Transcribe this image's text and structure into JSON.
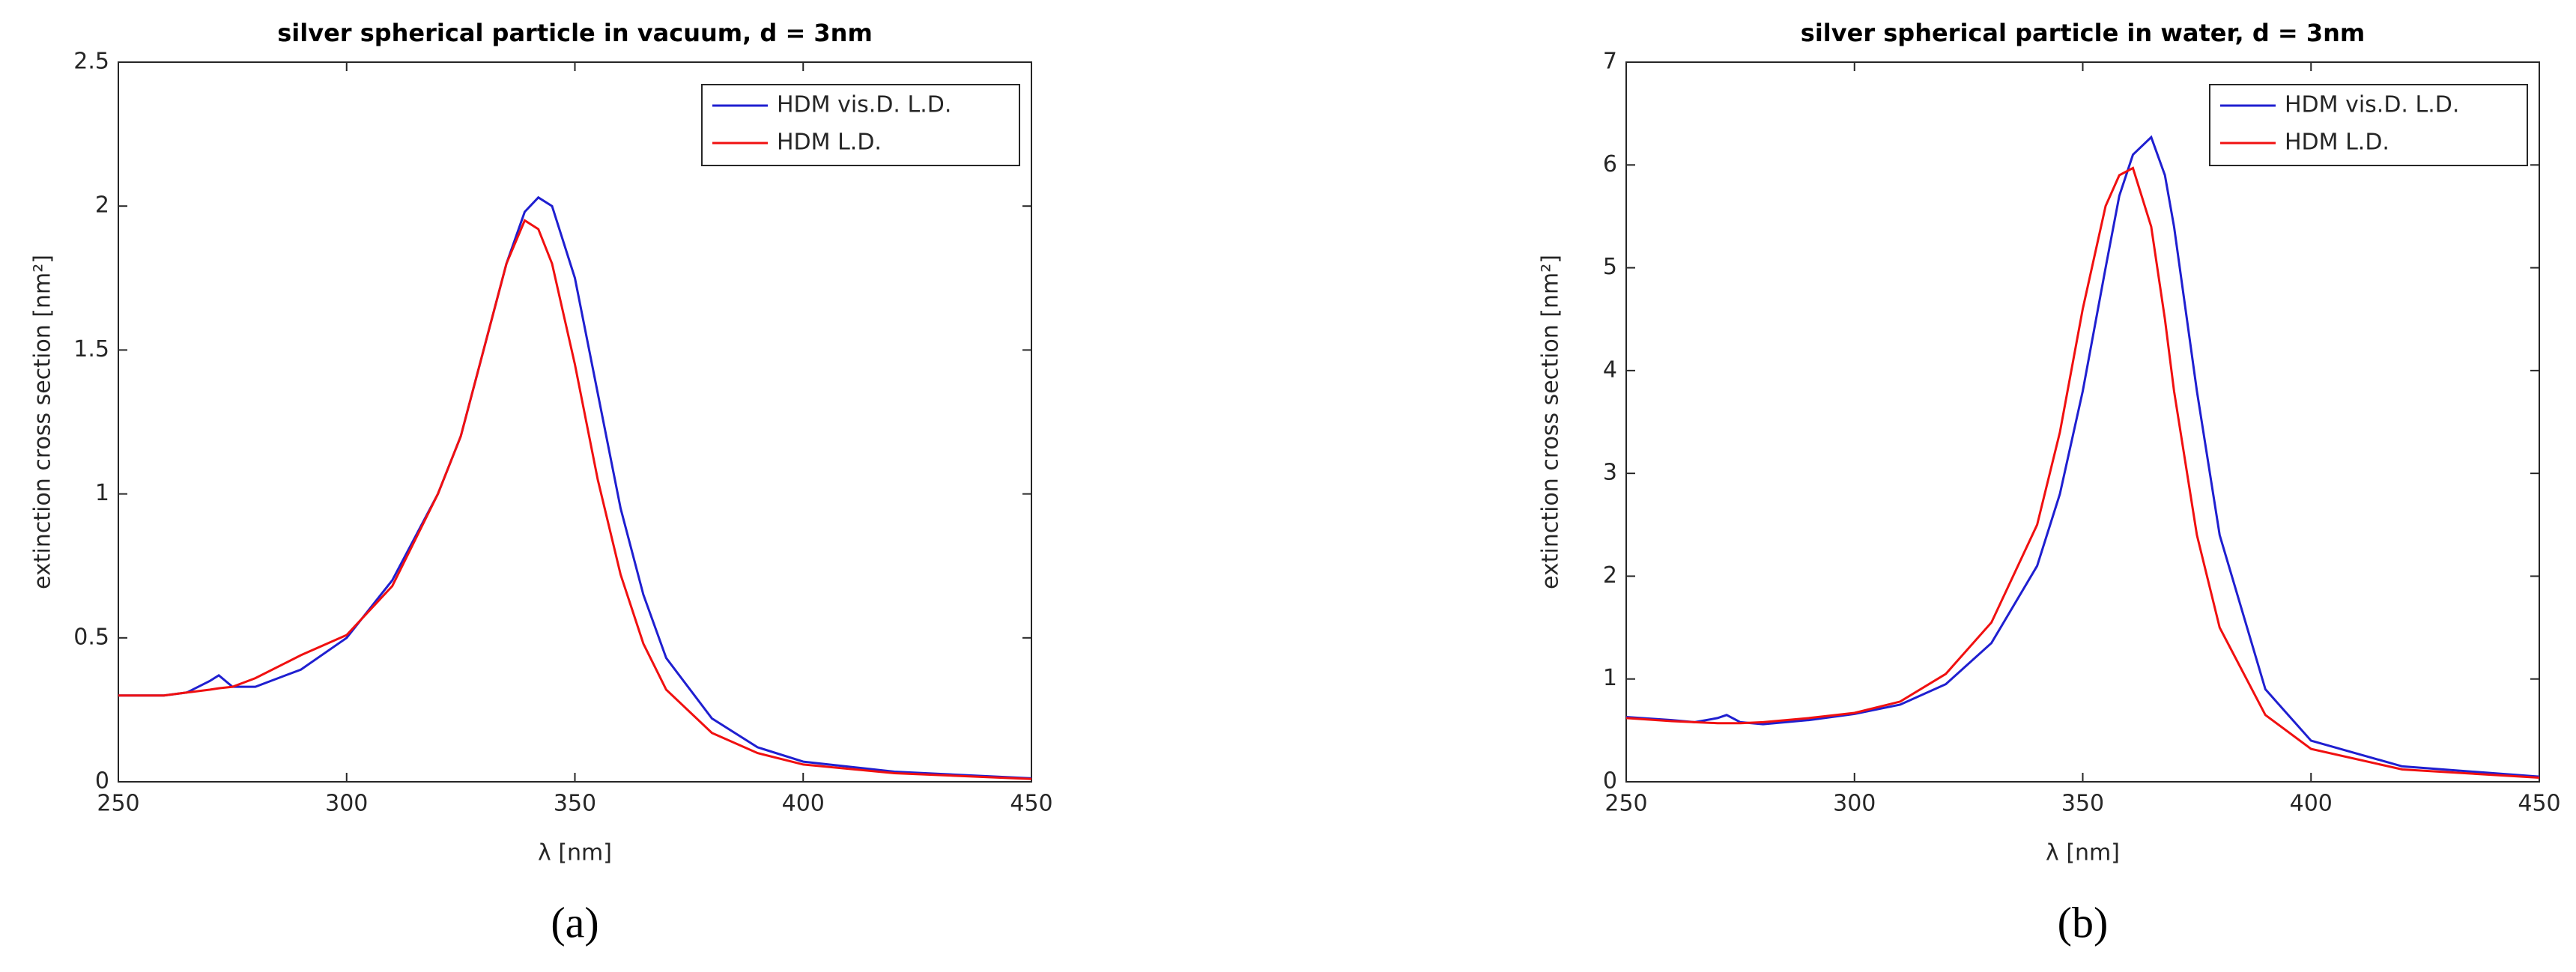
{
  "chart_data": [
    {
      "type": "line",
      "title": "silver spherical particle in vacuum, d = 3nm",
      "xlabel": "λ [nm]",
      "ylabel": "extinction cross section [nm²]",
      "panel_label": "(a)",
      "x": [
        250,
        260,
        265,
        270,
        272,
        275,
        280,
        290,
        300,
        310,
        320,
        325,
        330,
        335,
        339,
        342,
        345,
        350,
        355,
        360,
        365,
        370,
        380,
        390,
        400,
        420,
        450
      ],
      "series": [
        {
          "name": "HDM vis.D. L.D.",
          "color": "#1f1fd0",
          "values": [
            0.3,
            0.3,
            0.31,
            0.35,
            0.37,
            0.33,
            0.33,
            0.39,
            0.5,
            0.7,
            1.0,
            1.2,
            1.5,
            1.8,
            1.98,
            2.03,
            2.0,
            1.75,
            1.35,
            0.95,
            0.65,
            0.43,
            0.22,
            0.12,
            0.07,
            0.035,
            0.012
          ]
        },
        {
          "name": "HDM L.D.",
          "color": "#f01010",
          "values": [
            0.3,
            0.3,
            0.31,
            0.32,
            0.325,
            0.33,
            0.36,
            0.44,
            0.51,
            0.68,
            1.0,
            1.2,
            1.5,
            1.8,
            1.95,
            1.92,
            1.8,
            1.45,
            1.05,
            0.72,
            0.48,
            0.32,
            0.17,
            0.1,
            0.06,
            0.03,
            0.01
          ]
        }
      ],
      "xlim": [
        250,
        450
      ],
      "xticks": [
        250,
        300,
        350,
        400,
        450
      ],
      "ylim": [
        0,
        2.5
      ],
      "yticks": [
        0,
        0.5,
        1,
        1.5,
        2,
        2.5
      ],
      "legend": "upper right"
    },
    {
      "type": "line",
      "title": "silver spherical particle in water, d = 3nm",
      "xlabel": "λ [nm]",
      "ylabel": "extinction cross section [nm²]",
      "panel_label": "(b)",
      "x": [
        250,
        260,
        265,
        270,
        272,
        275,
        280,
        290,
        300,
        310,
        320,
        330,
        340,
        345,
        350,
        355,
        358,
        361,
        365,
        368,
        370,
        375,
        380,
        390,
        400,
        420,
        450
      ],
      "series": [
        {
          "name": "HDM vis.D. L.D.",
          "color": "#1f1fd0",
          "values": [
            0.63,
            0.6,
            0.58,
            0.62,
            0.65,
            0.58,
            0.56,
            0.6,
            0.66,
            0.75,
            0.95,
            1.35,
            2.1,
            2.8,
            3.8,
            5.0,
            5.7,
            6.1,
            6.27,
            5.9,
            5.4,
            3.8,
            2.4,
            0.9,
            0.4,
            0.15,
            0.05
          ]
        },
        {
          "name": "HDM L.D.",
          "color": "#f01010",
          "values": [
            0.62,
            0.59,
            0.58,
            0.57,
            0.57,
            0.57,
            0.58,
            0.62,
            0.67,
            0.78,
            1.05,
            1.55,
            2.5,
            3.4,
            4.6,
            5.6,
            5.9,
            5.97,
            5.4,
            4.5,
            3.8,
            2.4,
            1.5,
            0.65,
            0.32,
            0.12,
            0.04
          ]
        }
      ],
      "xlim": [
        250,
        450
      ],
      "xticks": [
        250,
        300,
        350,
        400,
        450
      ],
      "ylim": [
        0,
        7
      ],
      "yticks": [
        0,
        1,
        2,
        3,
        4,
        5,
        6,
        7
      ],
      "legend": "upper right"
    }
  ]
}
